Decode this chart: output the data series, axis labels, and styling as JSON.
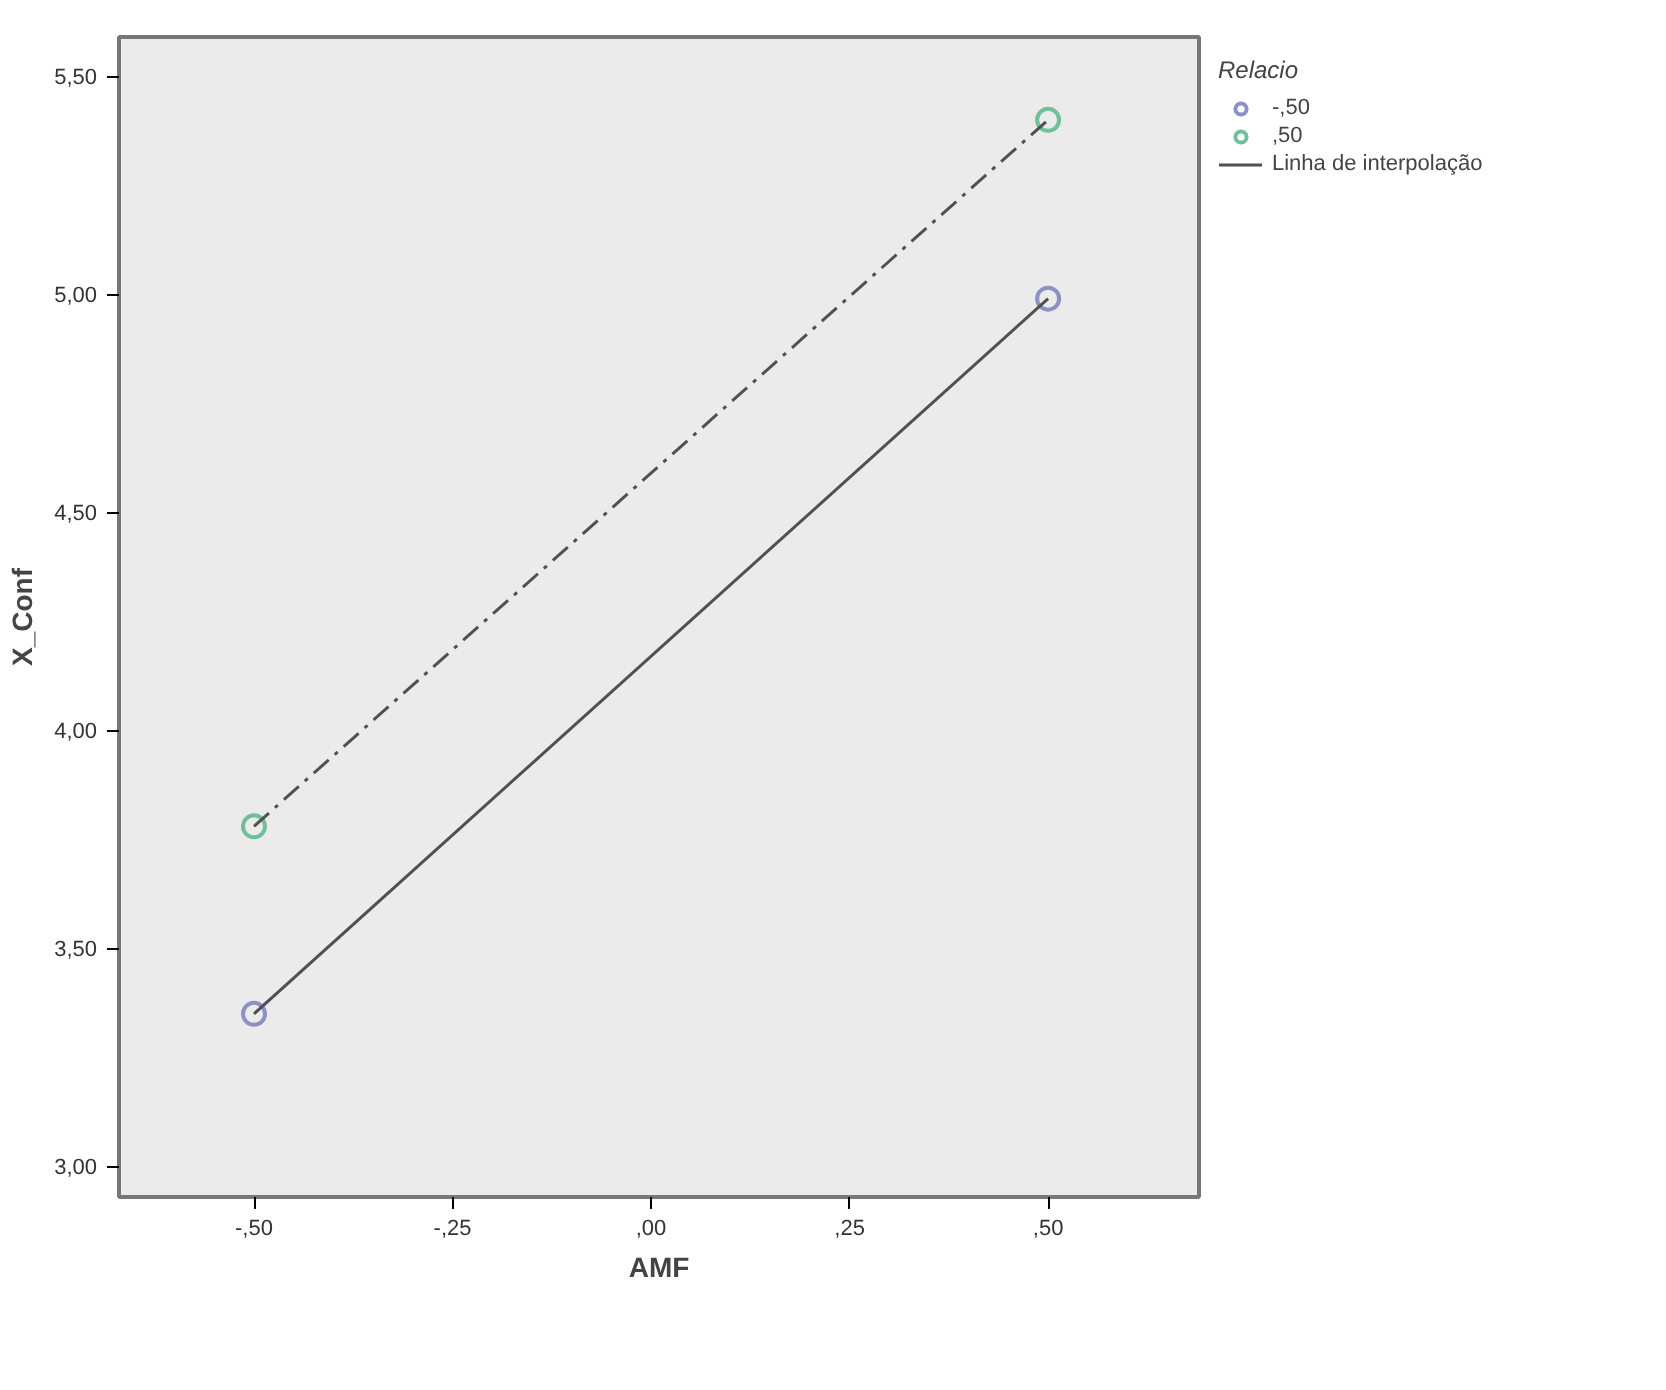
{
  "chart_data": {
    "type": "scatter",
    "xlabel": "AMF",
    "ylabel": "X_Conf",
    "legend_title": "Relacio",
    "legend": "top right",
    "categories": [
      "-,50",
      "-,25",
      ",00",
      ",25",
      ",50"
    ],
    "series": [
      {
        "name": "-,50",
        "color": "#8c90c4",
        "values": [
          3.35,
          null,
          null,
          null,
          4.99
        ],
        "marker": "circle"
      },
      {
        "name": ",50",
        "color": "#6fbf98",
        "values": [
          3.78,
          null,
          null,
          null,
          5.4
        ],
        "marker": "circle"
      },
      {
        "name": "Linha de interpolação",
        "type": "line",
        "color": "#505050",
        "values": [
          3.35,
          null,
          null,
          null,
          4.99
        ],
        "line_style": "solid",
        "marker": "none"
      },
      {
        "type": "line",
        "color": "#505050",
        "values": [
          3.78,
          null,
          null,
          null,
          5.4
        ],
        "line_style": "dashed",
        "marker": "none"
      }
    ],
    "ylim": [
      2.93,
      5.59
    ],
    "yticks": [
      {
        "value": 3.0,
        "label": "3,00"
      },
      {
        "value": 3.5,
        "label": "3,50"
      },
      {
        "value": 4.0,
        "label": "4,00"
      },
      {
        "value": 4.5,
        "label": "4,50"
      },
      {
        "value": 5.0,
        "label": "5,00"
      },
      {
        "value": 5.5,
        "label": "5,50"
      }
    ],
    "grid": false
  }
}
